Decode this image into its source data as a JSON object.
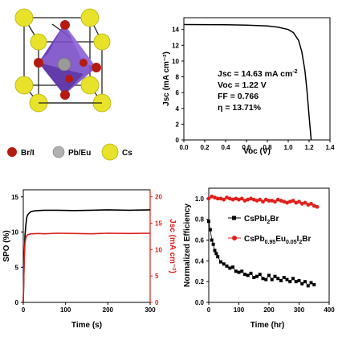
{
  "crystal": {
    "legend": [
      {
        "label": "Br/I",
        "color": "#b51a10"
      },
      {
        "label": "Pb/Eu",
        "color": "#9a9a9a"
      },
      {
        "label": "Cs",
        "color": "#e8e22a"
      }
    ],
    "octahedron_color": "#7b4fc9"
  },
  "chart_data": [
    {
      "type": "line",
      "xlabel": "Voc (V)",
      "ylabel": "Jsc (mA cm⁻²)",
      "xlim": [
        0.0,
        1.4
      ],
      "ylim": [
        0,
        15.5
      ],
      "xticks": [
        "0.0",
        "0.2",
        "0.4",
        "0.6",
        "0.8",
        "1.0",
        "1.2",
        "1.4"
      ],
      "yticks": [
        "0",
        "2",
        "4",
        "6",
        "8",
        "10",
        "12",
        "14"
      ],
      "series": [
        {
          "color": "#000000",
          "x": [
            0,
            0.2,
            0.4,
            0.6,
            0.8,
            0.9,
            1.0,
            1.05,
            1.1,
            1.13,
            1.16,
            1.18,
            1.2,
            1.22
          ],
          "y": [
            14.63,
            14.62,
            14.6,
            14.55,
            14.45,
            14.3,
            14.0,
            13.6,
            12.6,
            11.2,
            8.8,
            6.2,
            3.0,
            0
          ]
        }
      ],
      "annotations": {
        "jsc_prefix": "Jsc = 14.63 mA cm",
        "jsc_sup": "-2",
        "voc": "Voc = 1.22 V",
        "ff": "FF = 0.766",
        "eta": "η = 13.71%"
      }
    },
    {
      "type": "line",
      "xlabel": "Time (s)",
      "ylabel": "SPO (%)",
      "y2label": "Jsc (mA cm⁻²)",
      "xlim": [
        0,
        300
      ],
      "ylim": [
        0,
        16
      ],
      "y2lim": [
        0,
        21.33
      ],
      "xticks": [
        "0",
        "100",
        "200",
        "300"
      ],
      "yticks": [
        "0",
        "5",
        "10",
        "15"
      ],
      "y2ticks": [
        "0",
        "5",
        "10",
        "15",
        "20"
      ],
      "series": [
        {
          "color": "#000000",
          "axis": "left",
          "x": [
            0,
            2,
            4,
            6,
            8,
            10,
            14,
            18,
            25,
            35,
            50,
            80,
            120,
            160,
            200,
            250,
            300
          ],
          "y": [
            0,
            6.0,
            9.5,
            11.0,
            12.0,
            12.4,
            12.7,
            12.9,
            13.0,
            13.05,
            13.1,
            13.1,
            13.05,
            13.1,
            13.15,
            13.1,
            13.15
          ]
        },
        {
          "color": "#e0201b",
          "axis": "right",
          "x": [
            0,
            2,
            4,
            6,
            8,
            10,
            14,
            18,
            25,
            35,
            50,
            80,
            120,
            160,
            200,
            250,
            300
          ],
          "y": [
            0,
            8.0,
            11.2,
            12.2,
            12.6,
            12.8,
            12.9,
            13.0,
            13.0,
            13.05,
            13.0,
            13.1,
            13.05,
            13.0,
            13.1,
            13.05,
            13.1
          ]
        }
      ]
    },
    {
      "type": "scatter",
      "xlabel": "Time (hr)",
      "ylabel": "Normalized Efficiency",
      "xlim": [
        0,
        400
      ],
      "ylim": [
        0,
        1.1
      ],
      "xticks": [
        "0",
        "100",
        "200",
        "300",
        "400"
      ],
      "yticks": [
        "0.0",
        "0.2",
        "0.4",
        "0.6",
        "0.8",
        "1.0"
      ],
      "series": [
        {
          "name": "CsPbI₂Br",
          "color": "#000000",
          "marker": "square",
          "x": [
            0,
            5,
            10,
            15,
            20,
            25,
            30,
            40,
            50,
            60,
            70,
            80,
            90,
            100,
            110,
            120,
            130,
            140,
            150,
            160,
            170,
            180,
            190,
            200,
            210,
            220,
            230,
            240,
            250,
            260,
            270,
            280,
            290,
            300,
            310,
            320,
            330,
            340,
            350
          ],
          "y": [
            0.78,
            0.7,
            0.6,
            0.56,
            0.5,
            0.47,
            0.44,
            0.39,
            0.37,
            0.35,
            0.33,
            0.34,
            0.3,
            0.29,
            0.3,
            0.27,
            0.26,
            0.28,
            0.24,
            0.25,
            0.27,
            0.23,
            0.22,
            0.26,
            0.22,
            0.25,
            0.23,
            0.21,
            0.24,
            0.22,
            0.2,
            0.23,
            0.2,
            0.21,
            0.18,
            0.2,
            0.16,
            0.19,
            0.17
          ]
        },
        {
          "name": "CsPb0.95Eu0.05I₂Br",
          "color": "#e0201b",
          "marker": "circle",
          "x": [
            0,
            10,
            20,
            30,
            40,
            50,
            60,
            70,
            80,
            90,
            100,
            110,
            120,
            130,
            140,
            150,
            160,
            170,
            180,
            190,
            200,
            210,
            220,
            230,
            240,
            250,
            260,
            270,
            280,
            290,
            300,
            310,
            320,
            330,
            340,
            350,
            360
          ],
          "y": [
            1.0,
            1.02,
            1.01,
            1.0,
            1.0,
            0.99,
            1.01,
            1.0,
            0.99,
            1.0,
            0.99,
            1.0,
            0.98,
            0.99,
            1.0,
            0.99,
            0.98,
            0.99,
            0.97,
            0.99,
            0.98,
            0.98,
            0.97,
            0.99,
            0.98,
            0.97,
            0.96,
            0.97,
            0.98,
            0.96,
            0.97,
            0.95,
            0.96,
            0.94,
            0.95,
            0.93,
            0.92
          ]
        }
      ],
      "legend": [
        {
          "prefix": "CsPbI",
          "sub1": "2",
          "mid": "Br",
          "color": "#000000",
          "marker": "square"
        },
        {
          "prefix": "CsPb",
          "sub1": "0.95",
          "mid": "Eu",
          "sub2": "0.05",
          "mid2": "I",
          "sub3": "2",
          "suffix": "Br",
          "color": "#e0201b",
          "marker": "circle"
        }
      ]
    }
  ]
}
